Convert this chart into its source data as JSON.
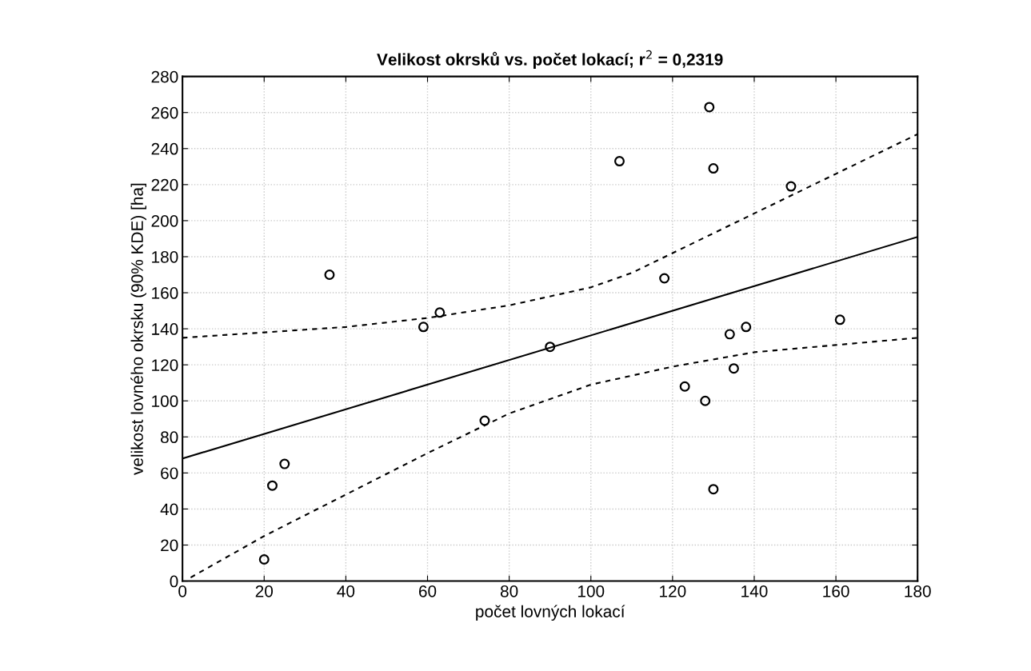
{
  "chart_data": {
    "type": "scatter",
    "title": "Velikost okrsků vs. počet lokací; r$^{2}$ = 0,2319",
    "xlabel": "počet lovných lokací",
    "ylabel": "velikost lovného okrsku (90% KDE) [ha]",
    "xlim": [
      0,
      180
    ],
    "xticks": [
      0,
      20,
      40,
      60,
      80,
      100,
      120,
      140,
      160,
      180
    ],
    "ylim": [
      0,
      280
    ],
    "yticks": [
      0,
      20,
      40,
      60,
      80,
      100,
      120,
      140,
      160,
      180,
      200,
      220,
      240,
      260,
      280
    ],
    "grid": true,
    "legend": false,
    "series": [
      {
        "color": "#000000",
        "marker": "circle",
        "x": [
          20,
          22,
          25,
          36,
          59,
          63,
          74,
          90,
          107,
          118,
          123,
          128,
          129,
          130,
          130,
          134,
          135,
          138,
          149,
          161
        ],
        "values": [
          12,
          53,
          65,
          170,
          141,
          149,
          89,
          130,
          233,
          168,
          108,
          100,
          263,
          229,
          51,
          137,
          118,
          141,
          219,
          145
        ]
      },
      {
        "type": "line",
        "color": "#000000",
        "line_style": "solid",
        "x": [
          0,
          180
        ],
        "values": [
          68,
          191
        ]
      },
      {
        "type": "line",
        "color": "#000000",
        "line_style": "dashed",
        "x": [
          0,
          20,
          40,
          60,
          80,
          100,
          110,
          120,
          140,
          160,
          180
        ],
        "values": [
          135,
          138,
          141,
          146,
          153,
          163,
          171,
          182,
          204,
          226,
          248
        ]
      },
      {
        "type": "line",
        "color": "#000000",
        "line_style": "dashed",
        "x": [
          2,
          20,
          40,
          60,
          80,
          100,
          120,
          140,
          160,
          180
        ],
        "values": [
          2,
          25,
          48,
          71,
          93,
          109,
          119,
          127,
          131,
          135
        ]
      }
    ]
  }
}
